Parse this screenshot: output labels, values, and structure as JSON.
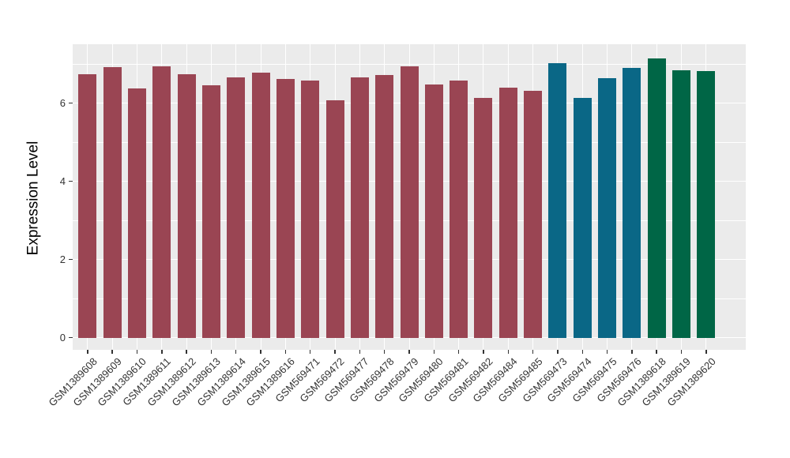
{
  "chart_data": {
    "type": "bar",
    "title": "",
    "xlabel": "",
    "ylabel": "Expression Level",
    "x_tick_angle_deg": 45,
    "y_ticks": [
      0,
      2,
      4,
      6
    ],
    "y_minor_ticks": [
      1,
      3,
      5,
      7
    ],
    "ylim": [
      -0.31,
      7.5
    ],
    "grid": "on",
    "legend": "none",
    "panel_background": "#EBEBEB",
    "grid_color": "#FFFFFF",
    "axis_tick_color": "#333333",
    "axis_text_color": "#333333",
    "axis_title_color": "#000000",
    "group_colors": {
      "maroon": "#9A4553",
      "teal": "#0A6786",
      "green": "#006646"
    },
    "categories": [
      "GSM1389608",
      "GSM1389609",
      "GSM1389610",
      "GSM1389611",
      "GSM1389612",
      "GSM1389613",
      "GSM1389614",
      "GSM1389615",
      "GSM1389616",
      "GSM569471",
      "GSM569472",
      "GSM569477",
      "GSM569478",
      "GSM569479",
      "GSM569480",
      "GSM569481",
      "GSM569482",
      "GSM569484",
      "GSM569485",
      "GSM569473",
      "GSM569474",
      "GSM569475",
      "GSM569476",
      "GSM1389618",
      "GSM1389619",
      "GSM1389620"
    ],
    "values": [
      6.74,
      6.93,
      6.37,
      6.94,
      6.73,
      6.45,
      6.66,
      6.78,
      6.62,
      6.57,
      6.08,
      6.65,
      6.72,
      6.95,
      6.48,
      6.58,
      6.13,
      6.4,
      6.31,
      7.03,
      6.13,
      6.64,
      6.91,
      7.14,
      6.84,
      6.82
    ],
    "bar_groups": [
      "maroon",
      "maroon",
      "maroon",
      "maroon",
      "maroon",
      "maroon",
      "maroon",
      "maroon",
      "maroon",
      "maroon",
      "maroon",
      "maroon",
      "maroon",
      "maroon",
      "maroon",
      "maroon",
      "maroon",
      "maroon",
      "maroon",
      "teal",
      "teal",
      "teal",
      "teal",
      "green",
      "green",
      "green"
    ]
  }
}
